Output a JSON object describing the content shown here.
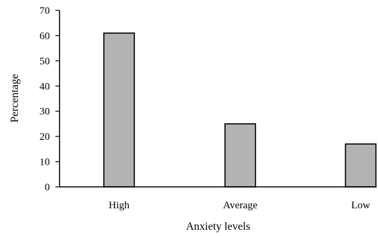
{
  "chart_data": {
    "type": "bar",
    "categories": [
      "High",
      "Average",
      "Low"
    ],
    "values": [
      61,
      25,
      17
    ],
    "title": "",
    "xlabel": "Anxiety levels",
    "ylabel": "Percentage",
    "ylim": [
      0,
      70
    ],
    "yticks": [
      "0",
      "10",
      "20",
      "30",
      "40",
      "50",
      "60",
      "70"
    ],
    "grid": false,
    "legend": "none",
    "colors": {
      "bar_fill": "#b3b3b3",
      "bar_stroke": "#000000",
      "axis": "#000000"
    }
  }
}
